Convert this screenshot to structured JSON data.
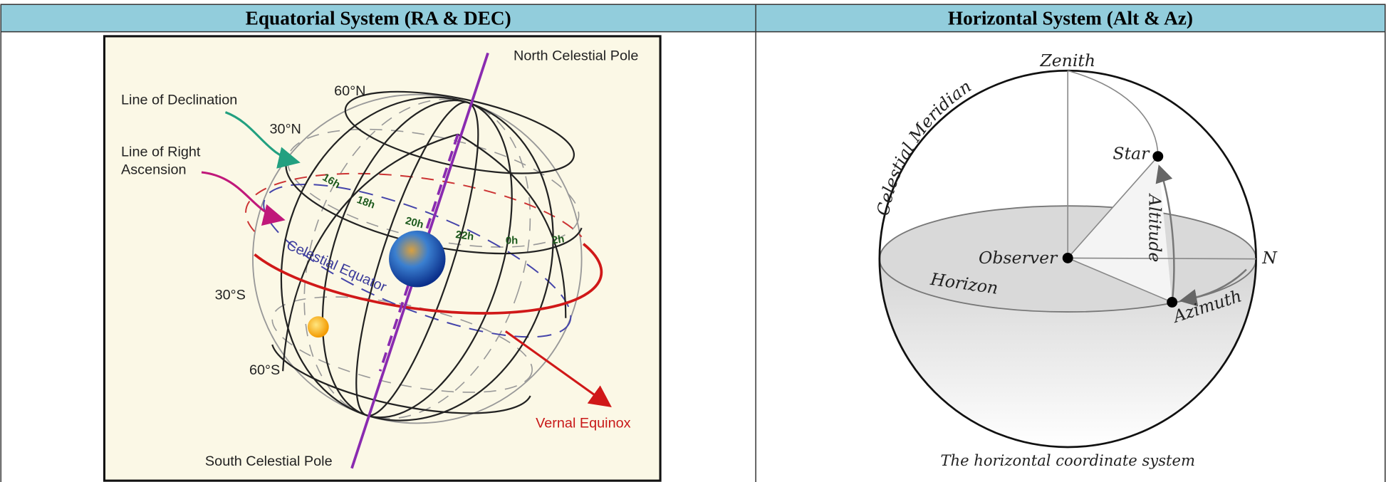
{
  "table": {
    "headers": [
      "Equatorial System (RA & DEC)",
      "Horizontal System (Alt & Az)"
    ]
  },
  "equatorial": {
    "north_pole": "North Celestial Pole",
    "line_of_declination": "Line of Declination",
    "line_of_right_ascension": [
      "Line of Right",
      "Ascension"
    ],
    "lat_60n": "60°N",
    "lat_30n": "30°N",
    "lat_30s": "30°S",
    "lat_60s": "60°S",
    "ra_labels": [
      "16h",
      "18h",
      "20h",
      "22h",
      "0h",
      "2h"
    ],
    "celestial_equator": "Celestial Equator",
    "vernal_equinox": "Vernal Equinox",
    "south_pole": "South Celestial Pole"
  },
  "horizontal": {
    "zenith": "Zenith",
    "celestial_meridian": "Celestial Meridian",
    "star": "Star",
    "altitude": "Altitude",
    "observer": "Observer",
    "north": "N",
    "horizon": "Horizon",
    "azimuth": "Azimuth",
    "caption": "The horizontal coordinate system"
  }
}
